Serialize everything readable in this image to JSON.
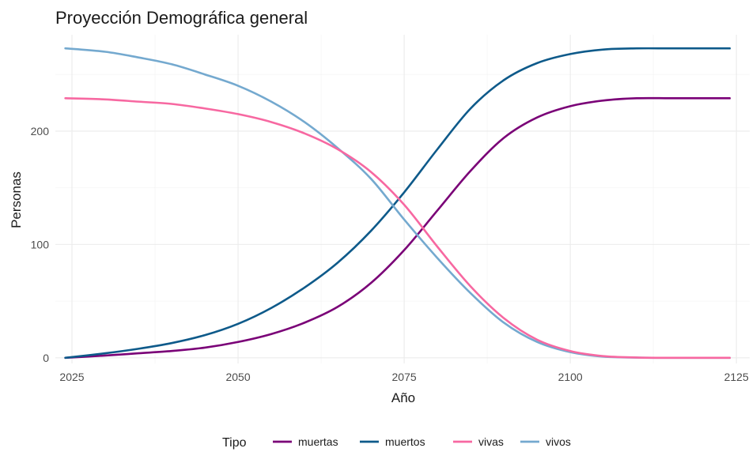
{
  "chart_data": {
    "type": "line",
    "title": "Proyección Demográfica general",
    "xlabel": "Año",
    "ylabel": "Personas",
    "xlim": [
      2022.5,
      2127
    ],
    "ylim": [
      -5,
      285
    ],
    "x_ticks": [
      2025,
      2050,
      2075,
      2100,
      2125
    ],
    "y_ticks": [
      0,
      100,
      200
    ],
    "grid": true,
    "legend": {
      "title": "Tipo",
      "position": "bottom"
    },
    "x": [
      2024,
      2030,
      2035,
      2040,
      2045,
      2050,
      2055,
      2060,
      2065,
      2070,
      2075,
      2080,
      2085,
      2090,
      2095,
      2100,
      2105,
      2110,
      2115,
      2120,
      2124
    ],
    "series": [
      {
        "name": "muertas",
        "color": "#7a0177",
        "values": [
          0,
          2,
          4,
          6,
          9,
          14,
          21,
          31,
          45,
          66,
          95,
          130,
          165,
          194,
          212,
          222,
          227,
          229,
          229,
          229,
          229
        ]
      },
      {
        "name": "muertos",
        "color": "#0e5a8a",
        "values": [
          0,
          4,
          8,
          13,
          20,
          30,
          44,
          62,
          84,
          112,
          146,
          184,
          220,
          245,
          260,
          268,
          272,
          273,
          273,
          273,
          273
        ]
      },
      {
        "name": "vivas",
        "color": "#f768a1",
        "values": [
          229,
          228,
          226,
          224,
          220,
          215,
          208,
          198,
          184,
          164,
          135,
          98,
          63,
          35,
          16,
          6,
          1.5,
          0.3,
          0,
          0,
          0
        ]
      },
      {
        "name": "vivos",
        "color": "#74a9cf",
        "values": [
          273,
          270,
          265,
          259,
          250,
          240,
          226,
          208,
          185,
          158,
          122,
          88,
          57,
          31,
          14,
          5,
          1,
          0.2,
          0,
          0,
          0
        ]
      }
    ]
  }
}
